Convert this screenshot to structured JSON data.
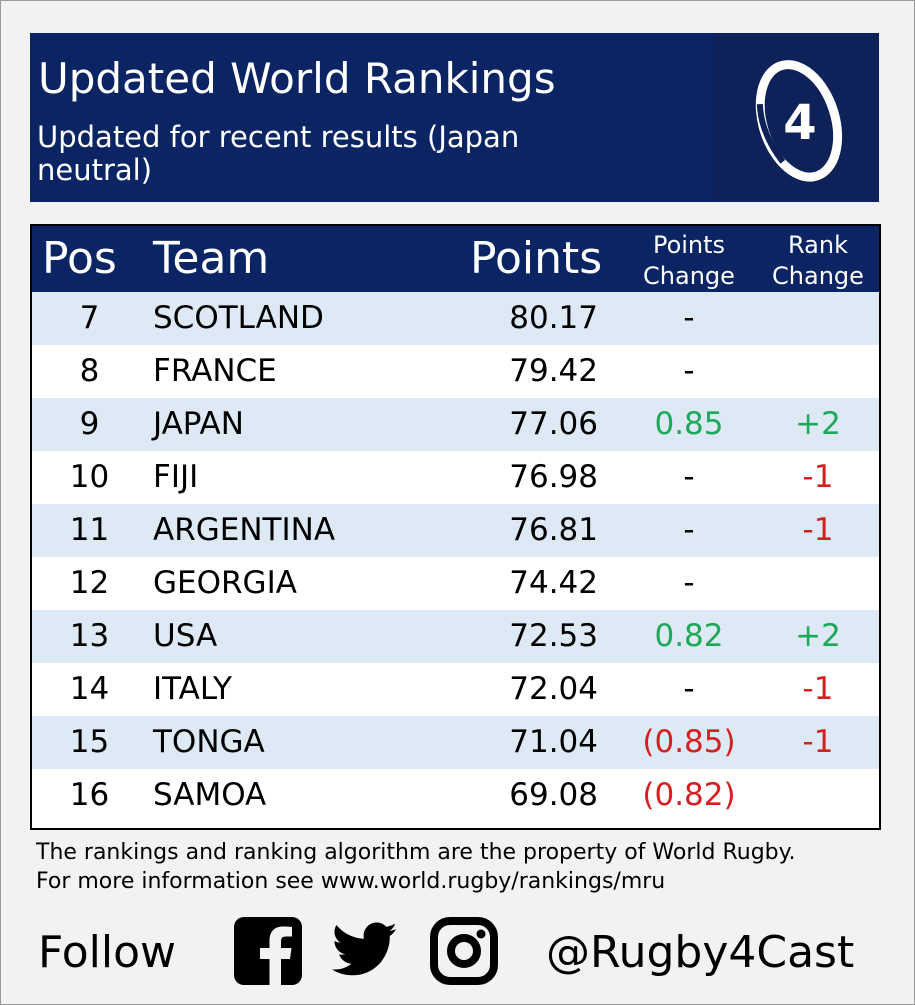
{
  "header": {
    "title": "Updated World Rankings",
    "subtitle": "Updated for recent results (Japan neutral)",
    "logo_icon": "rugby4cast-logo-icon",
    "logo_text": "4"
  },
  "table": {
    "columns": {
      "pos": "Pos",
      "team": "Team",
      "points": "Points",
      "points_change": [
        "Points",
        "Change"
      ],
      "rank_change": [
        "Rank",
        "Change"
      ]
    },
    "rows": [
      {
        "pos": "7",
        "team": "SCOTLAND",
        "points": "80.17",
        "points_change": "-",
        "rank_change": ""
      },
      {
        "pos": "8",
        "team": "FRANCE",
        "points": "79.42",
        "points_change": "-",
        "rank_change": ""
      },
      {
        "pos": "9",
        "team": "JAPAN",
        "points": "77.06",
        "points_change": "0.85",
        "rank_change": "+2"
      },
      {
        "pos": "10",
        "team": "FIJI",
        "points": "76.98",
        "points_change": "-",
        "rank_change": "-1"
      },
      {
        "pos": "11",
        "team": "ARGENTINA",
        "points": "76.81",
        "points_change": "-",
        "rank_change": "-1"
      },
      {
        "pos": "12",
        "team": "GEORGIA",
        "points": "74.42",
        "points_change": "-",
        "rank_change": ""
      },
      {
        "pos": "13",
        "team": "USA",
        "points": "72.53",
        "points_change": "0.82",
        "rank_change": "+2"
      },
      {
        "pos": "14",
        "team": "ITALY",
        "points": "72.04",
        "points_change": "-",
        "rank_change": "-1"
      },
      {
        "pos": "15",
        "team": "TONGA",
        "points": "71.04",
        "points_change": "(0.85)",
        "rank_change": "-1"
      },
      {
        "pos": "16",
        "team": "SAMOA",
        "points": "69.08",
        "points_change": "(0.82)",
        "rank_change": ""
      }
    ]
  },
  "footer": {
    "note_line1": "The rankings and ranking algorithm are the property of World Rugby.",
    "note_line2": "For more information see www.world.rugby/rankings/mru",
    "follow_label": "Follow",
    "social_icons": [
      "facebook-icon",
      "twitter-icon",
      "instagram-icon"
    ],
    "handle": "@Rugby4Cast"
  },
  "colors": {
    "navy": "#0a2464",
    "row_alt": "#dde9f5",
    "positive": "#20a85a",
    "negative": "#d42020"
  }
}
